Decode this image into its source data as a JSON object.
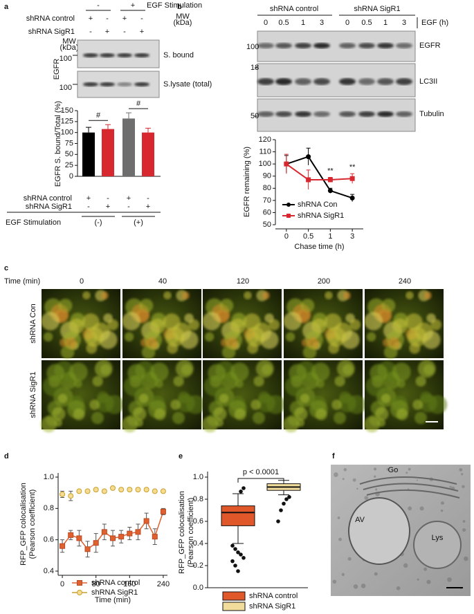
{
  "panel_a": {
    "header": "EGF Stimulation",
    "header_marks": [
      "-",
      "+"
    ],
    "conditions": [
      {
        "name": "shRNA control",
        "marks": [
          "+",
          "-",
          "+",
          "-"
        ]
      },
      {
        "name": "shRNA SigR1",
        "marks": [
          "-",
          "+",
          "-",
          "+"
        ]
      }
    ],
    "mw_label": [
      "MW",
      "(kDa)"
    ],
    "mw": [
      "100",
      "100"
    ],
    "protein": "EGFR",
    "fractions": [
      "S. bound",
      "S.lysate (total)"
    ]
  },
  "panel_b": {
    "headers": [
      "shRNA control",
      "shRNA SigR1"
    ],
    "times": [
      "0",
      "0.5",
      "1",
      "3",
      "0",
      "0.5",
      "1",
      "3"
    ],
    "time_label": "EGF (h)",
    "mw_label": [
      "MW",
      "(kDa)"
    ],
    "mw": [
      "100",
      "18",
      "50"
    ],
    "proteins": [
      "EGFR",
      "LC3II",
      "Tubulin"
    ]
  },
  "panel_c": {
    "label": "c",
    "time_label": "Time (min)",
    "times": [
      "0",
      "40",
      "120",
      "200",
      "240"
    ],
    "rows": [
      "shRNA Con",
      "shRNA SigR1"
    ]
  },
  "panel_f": {
    "label": "f",
    "labels": [
      "Go",
      "AV",
      "Lys"
    ]
  },
  "chart_data": [
    {
      "type": "bar",
      "label": "a",
      "ylabel": "EGFR S. bound/Total (%)",
      "values": [
        100,
        108,
        132,
        100
      ],
      "errors": [
        12,
        10,
        13,
        10
      ],
      "colors": [
        "#000000",
        "#d7282f",
        "#6e6e6e",
        "#d7282f"
      ],
      "ylim": [
        0,
        150
      ],
      "yticks": [
        0,
        25,
        50,
        75,
        100,
        125,
        150
      ],
      "annotations": [
        "#",
        "#"
      ],
      "conditions": [
        {
          "name": "shRNA control",
          "marks": [
            "+",
            "-",
            "+",
            "-"
          ]
        },
        {
          "name": "shRNA SigR1",
          "marks": [
            "-",
            "+",
            "-",
            "+"
          ]
        }
      ],
      "group_title": "EGF Stimulation",
      "groups": [
        "(-)",
        "(+)"
      ]
    },
    {
      "type": "line",
      "label": "b",
      "xlabel": "Chase time (h)",
      "ylabel": "EGFR remaining (%)",
      "categories": [
        "0",
        "0.5",
        "1",
        "3"
      ],
      "series": [
        {
          "name": "shRNA Con",
          "color": "#000000",
          "marker": "circle",
          "values": [
            100,
            106,
            78,
            72
          ],
          "errors": [
            7,
            7,
            2,
            3
          ]
        },
        {
          "name": "shRNA SigR1",
          "color": "#d7282f",
          "marker": "square",
          "values": [
            100,
            87,
            87,
            88
          ],
          "errors": [
            8,
            8,
            2,
            4
          ]
        }
      ],
      "ylim": [
        50,
        120
      ],
      "yticks": [
        50,
        60,
        70,
        80,
        90,
        100,
        110,
        120
      ],
      "annotations": [
        null,
        null,
        "**",
        "**"
      ]
    },
    {
      "type": "line",
      "label": "d",
      "xlabel": "Time (min)",
      "ylabel": [
        "RFP_GFP colocalisation",
        "(Pearson coefficient)"
      ],
      "x": [
        0,
        20,
        40,
        60,
        80,
        100,
        120,
        140,
        160,
        180,
        200,
        220,
        240
      ],
      "series": [
        {
          "name": "shRNA control",
          "color": "#e0602f",
          "marker": "square",
          "values": [
            0.56,
            0.63,
            0.61,
            0.54,
            0.58,
            0.65,
            0.61,
            0.62,
            0.64,
            0.65,
            0.72,
            0.62,
            0.78
          ],
          "errors": [
            0.04,
            0.03,
            0.05,
            0.05,
            0.06,
            0.05,
            0.05,
            0.04,
            0.04,
            0.05,
            0.05,
            0.05,
            0.02
          ]
        },
        {
          "name": "shRNA SigR1",
          "color": "#f6dc8f",
          "marker": "circle",
          "values": [
            0.89,
            0.88,
            0.91,
            0.91,
            0.92,
            0.91,
            0.93,
            0.92,
            0.92,
            0.92,
            0.92,
            0.91,
            0.91
          ],
          "errors": [
            0.02,
            0.03,
            0.01,
            0.01,
            0.01,
            0.01,
            0.01,
            0.01,
            0.01,
            0.01,
            0.01,
            0.01,
            0.01
          ]
        }
      ],
      "xlim": [
        -10,
        250
      ],
      "xticks": [
        0,
        80,
        160,
        240
      ],
      "ylim": [
        0.4,
        1.0
      ],
      "yticks": [
        0.4,
        0.6,
        0.8,
        {
          "value": 1,
          "label": "1.0"
        }
      ]
    },
    {
      "type": "box",
      "label": "e",
      "ylabel": [
        "RFP_GFP colocalisation",
        "(Pearson coefficient)"
      ],
      "annotation": "p < 0.0001",
      "boxes": [
        {
          "name": "shRNA control",
          "color": "#e0572a",
          "whislo": 0.4,
          "q1": 0.56,
          "med": 0.68,
          "q3": 0.74,
          "whishi": 0.85,
          "fliers": [
            0.38,
            0.35,
            0.32,
            0.3,
            0.27,
            0.24,
            0.2,
            0.15,
            0.87,
            0.9
          ]
        },
        {
          "name": "shRNA SigR1",
          "color": "#f2dc9b",
          "whislo": 0.84,
          "q1": 0.88,
          "med": 0.91,
          "q3": 0.94,
          "whishi": 0.97,
          "fliers": [
            0.6,
            0.7,
            0.76,
            0.8,
            0.82
          ]
        }
      ],
      "ylim": [
        0,
        1.0
      ],
      "yticks": [
        {
          "value": 0,
          "label": "0.0"
        },
        0.2,
        0.4,
        0.6,
        0.8,
        {
          "value": 1,
          "label": "1.0"
        }
      ]
    }
  ]
}
